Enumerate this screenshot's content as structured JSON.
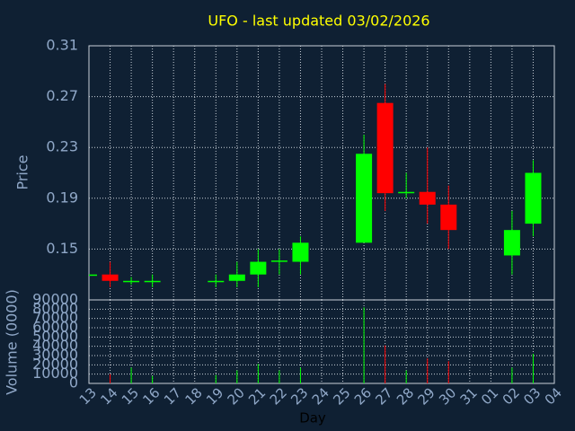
{
  "chart_data": {
    "type": "candlestick",
    "title": "UFO - last updated 03/02/2026",
    "xlabel": "Day",
    "ylabel": "Price",
    "categories": [
      "13",
      "14",
      "15",
      "16",
      "17",
      "18",
      "19",
      "20",
      "21",
      "22",
      "23",
      "24",
      "25",
      "26",
      "27",
      "28",
      "29",
      "30",
      "31",
      "01",
      "02",
      "03",
      "04"
    ],
    "open": [
      0.13,
      0.13,
      0.124,
      0.124,
      null,
      null,
      0.124,
      0.125,
      0.13,
      0.14,
      0.14,
      null,
      null,
      0.155,
      0.265,
      0.194,
      0.195,
      0.185,
      null,
      null,
      0.145,
      0.17,
      null
    ],
    "high": [
      0.13,
      0.14,
      0.128,
      0.13,
      null,
      null,
      0.13,
      0.14,
      0.15,
      0.15,
      0.16,
      null,
      null,
      0.24,
      0.28,
      0.21,
      0.23,
      0.2,
      null,
      null,
      0.18,
      0.22,
      null
    ],
    "low": [
      0.13,
      0.12,
      0.122,
      0.12,
      null,
      null,
      0.12,
      0.12,
      0.12,
      0.13,
      0.13,
      null,
      null,
      0.155,
      0.18,
      0.19,
      0.17,
      0.15,
      null,
      null,
      0.13,
      0.16,
      null
    ],
    "close": [
      0.13,
      0.125,
      0.125,
      0.125,
      null,
      null,
      0.125,
      0.13,
      0.14,
      0.141,
      0.155,
      null,
      null,
      0.225,
      0.194,
      0.195,
      0.185,
      0.165,
      null,
      null,
      0.165,
      0.21,
      null
    ],
    "up_color": "#00ff00",
    "down_color": "#ff0000",
    "ylim": [
      0.11,
      0.31
    ],
    "yticks": [
      0.15,
      0.19,
      0.23,
      0.27,
      0.31
    ],
    "grid": true,
    "volume": {
      "label": "Volume (0000)",
      "values": [
        null,
        10000,
        17000,
        8000,
        null,
        null,
        9000,
        14000,
        21000,
        14000,
        17000,
        null,
        null,
        82000,
        41000,
        14000,
        27000,
        24000,
        null,
        null,
        17000,
        32000,
        null
      ],
      "ylim": [
        0,
        90000
      ],
      "yticks": [
        0,
        10000,
        20000,
        30000,
        40000,
        50000,
        60000,
        70000,
        80000,
        90000
      ]
    }
  }
}
